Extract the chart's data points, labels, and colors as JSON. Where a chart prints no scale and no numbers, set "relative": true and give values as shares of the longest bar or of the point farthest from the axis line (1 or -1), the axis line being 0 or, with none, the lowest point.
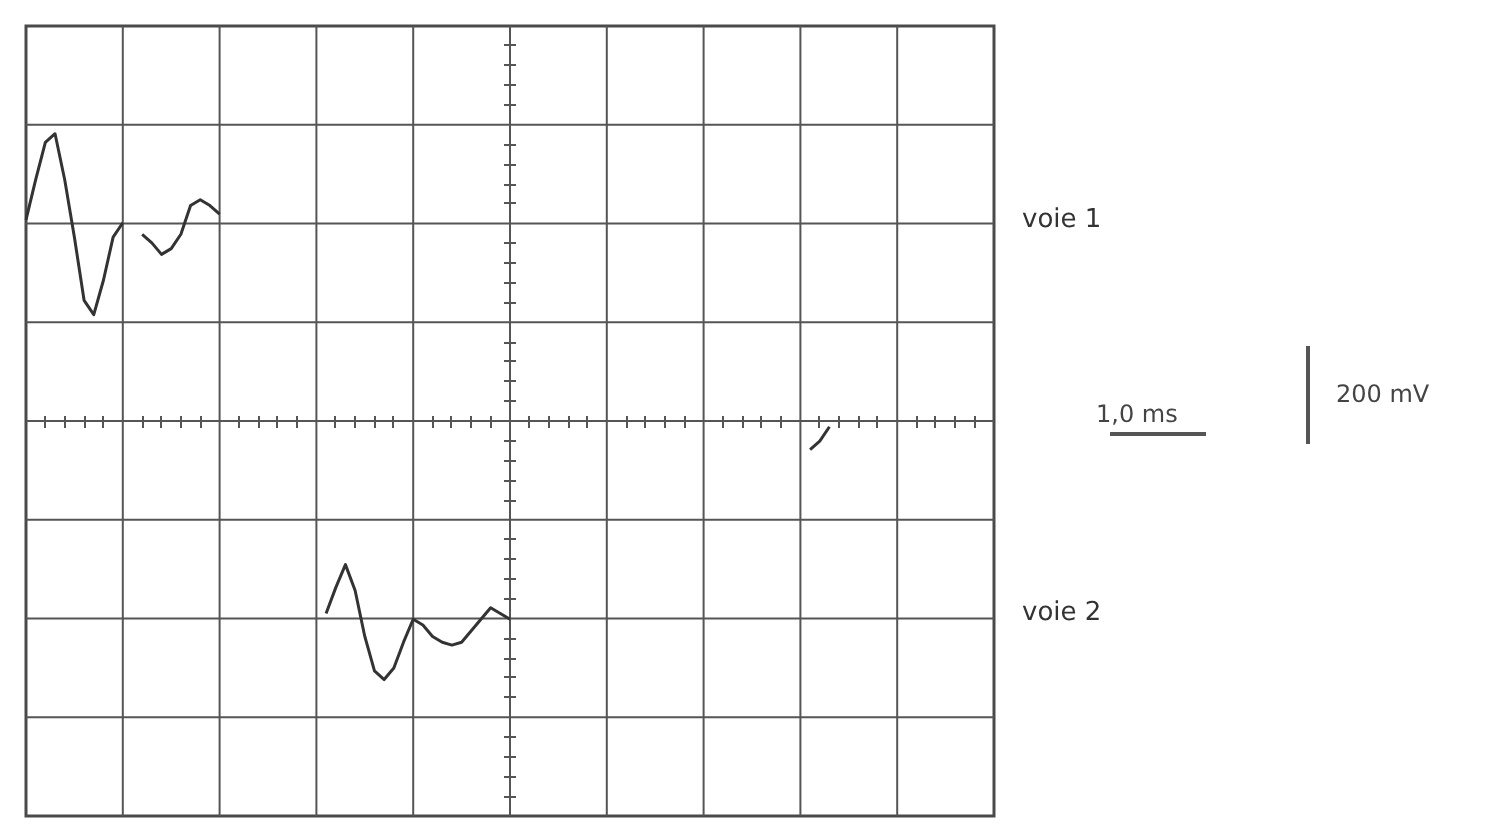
{
  "chart_data": {
    "type": "line",
    "relative": true,
    "grid": true,
    "legend": false,
    "marker": "none",
    "line_style": "solid",
    "categories": [
      null,
      null,
      null,
      null,
      null,
      null,
      null,
      null,
      null,
      null,
      null,
      null,
      null,
      null,
      null,
      null,
      null,
      null,
      null,
      null,
      null,
      null,
      null,
      null,
      null,
      null,
      null,
      null,
      null,
      null,
      null,
      null,
      null,
      null,
      null,
      null,
      null,
      null,
      null,
      null,
      null,
      null,
      null,
      null,
      null,
      null,
      null,
      null,
      null,
      null,
      null,
      null,
      null,
      null,
      null,
      null,
      null,
      null,
      null,
      null,
      null,
      null,
      null,
      null,
      null,
      null,
      null,
      null,
      null,
      null,
      null,
      null,
      null,
      null,
      null,
      null,
      null,
      null,
      null,
      null,
      null,
      null,
      null,
      null,
      null,
      null,
      null,
      null,
      null,
      null,
      null,
      null,
      null,
      null,
      null,
      null,
      null,
      null,
      null,
      null,
      null
    ],
    "series": [
      {
        "name": "voie 1",
        "color": "#333333",
        "values": [
          0.7,
          0.84,
          0.97,
          1,
          0.84,
          0.64,
          0.42,
          0.37,
          0.49,
          0.64,
          0.69,
          null,
          0.65,
          0.62,
          0.58,
          0.6,
          0.65,
          0.75,
          0.77,
          0.75,
          0.72,
          null,
          null,
          null,
          null,
          null,
          null,
          null,
          null,
          null,
          null,
          null,
          null,
          null,
          null,
          null,
          null,
          null,
          null,
          null,
          null,
          null,
          null,
          null,
          null,
          null,
          null,
          null,
          null,
          null,
          null,
          null,
          null,
          null,
          null,
          null,
          null,
          null,
          null,
          null,
          null,
          null,
          null,
          null,
          null,
          null,
          null,
          null,
          null,
          null,
          null,
          null,
          null,
          null,
          null,
          null,
          null,
          null,
          null,
          null,
          null,
          null,
          null,
          null,
          null,
          null,
          null,
          null,
          null,
          null,
          null,
          null,
          null,
          null,
          null,
          null,
          null,
          null,
          null,
          null,
          null
        ]
      },
      {
        "name": "voie 2",
        "color": "#333333",
        "values": [
          null,
          null,
          null,
          null,
          null,
          null,
          null,
          null,
          null,
          null,
          null,
          null,
          null,
          null,
          null,
          null,
          null,
          null,
          null,
          null,
          null,
          null,
          null,
          null,
          null,
          null,
          null,
          null,
          null,
          null,
          null,
          -0.67,
          -0.58,
          -0.5,
          -0.59,
          -0.75,
          -0.87,
          -0.9,
          -0.86,
          -0.77,
          -0.69,
          -0.71,
          -0.75,
          -0.77,
          -0.78,
          -0.77,
          -0.73,
          -0.69,
          -0.65,
          -0.67,
          -0.69,
          null,
          null,
          null,
          null,
          null,
          null,
          null,
          null,
          null,
          null,
          null,
          null,
          null,
          null,
          null,
          null,
          null,
          null,
          null,
          null,
          null,
          null,
          null,
          null,
          null,
          null,
          null,
          null,
          null,
          null,
          null,
          null,
          null,
          null,
          null,
          null,
          null,
          null,
          null,
          null,
          null,
          null,
          null,
          null,
          null,
          null,
          null,
          null,
          null,
          null
        ]
      },
      {
        "color": "#333333",
        "values": [
          null,
          null,
          null,
          null,
          null,
          null,
          null,
          null,
          null,
          null,
          null,
          null,
          null,
          null,
          null,
          null,
          null,
          null,
          null,
          null,
          null,
          null,
          null,
          null,
          null,
          null,
          null,
          null,
          null,
          null,
          null,
          null,
          null,
          null,
          null,
          null,
          null,
          null,
          null,
          null,
          null,
          null,
          null,
          null,
          null,
          null,
          null,
          null,
          null,
          null,
          null,
          null,
          null,
          null,
          null,
          null,
          null,
          null,
          null,
          null,
          null,
          null,
          null,
          null,
          null,
          null,
          null,
          null,
          null,
          null,
          null,
          null,
          null,
          null,
          null,
          null,
          null,
          null,
          null,
          null,
          null,
          -0.1,
          -0.07,
          -0.02,
          null,
          null,
          null,
          null,
          null,
          null,
          null,
          null,
          null,
          null,
          null,
          null,
          null,
          null,
          null,
          null,
          null
        ]
      }
    ],
    "annotations": [
      "1,0 ms",
      "200 mV"
    ]
  }
}
